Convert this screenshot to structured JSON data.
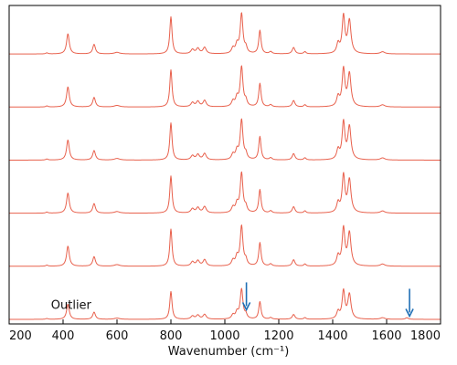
{
  "chart_data": {
    "type": "line",
    "title": "",
    "xlabel": "Wavenumber (cm⁻¹)",
    "ylabel": "",
    "xlim": [
      200,
      1800
    ],
    "xticks": [
      200,
      400,
      600,
      800,
      1000,
      1200,
      1400,
      1600,
      1800
    ],
    "grid": false,
    "legend": "none",
    "stacked_offset": true,
    "line_color": "#e8604c",
    "arrow_color": "#1f6fb5",
    "peaks": [
      {
        "x": 340,
        "w": 5,
        "h": 0.02
      },
      {
        "x": 418,
        "w": 6,
        "h": 0.38
      },
      {
        "x": 515,
        "w": 6,
        "h": 0.18
      },
      {
        "x": 600,
        "w": 12,
        "h": 0.03
      },
      {
        "x": 800,
        "w": 5,
        "h": 0.7
      },
      {
        "x": 880,
        "w": 7,
        "h": 0.08
      },
      {
        "x": 900,
        "w": 7,
        "h": 0.1
      },
      {
        "x": 925,
        "w": 7,
        "h": 0.12
      },
      {
        "x": 1030,
        "w": 6,
        "h": 0.1
      },
      {
        "x": 1045,
        "w": 6,
        "h": 0.16
      },
      {
        "x": 1062,
        "w": 6,
        "h": 0.75
      },
      {
        "x": 1078,
        "w": 5,
        "h": 0.1
      },
      {
        "x": 1130,
        "w": 5,
        "h": 0.44
      },
      {
        "x": 1170,
        "w": 6,
        "h": 0.04
      },
      {
        "x": 1255,
        "w": 6,
        "h": 0.12
      },
      {
        "x": 1297,
        "w": 5,
        "h": 0.04
      },
      {
        "x": 1420,
        "w": 6,
        "h": 0.18
      },
      {
        "x": 1440,
        "w": 6,
        "h": 0.7
      },
      {
        "x": 1462,
        "w": 7,
        "h": 0.62
      },
      {
        "x": 1585,
        "w": 10,
        "h": 0.04
      }
    ],
    "series": [
      {
        "scale": 1.0,
        "extra_peaks": []
      },
      {
        "scale": 1.0,
        "extra_peaks": []
      },
      {
        "scale": 1.0,
        "extra_peaks": []
      },
      {
        "scale": 1.0,
        "extra_peaks": []
      },
      {
        "scale": 1.0,
        "extra_peaks": []
      },
      {
        "scale": 0.75,
        "extra_peaks": [
          {
            "x": 1675,
            "w": 6,
            "h": 0.04
          }
        ]
      }
    ],
    "annotations": [
      {
        "text": "Outlier",
        "x": 430,
        "series": 5
      }
    ],
    "arrows": [
      {
        "x": 1080,
        "series": 5
      },
      {
        "x": 1685,
        "series": 5
      }
    ]
  }
}
